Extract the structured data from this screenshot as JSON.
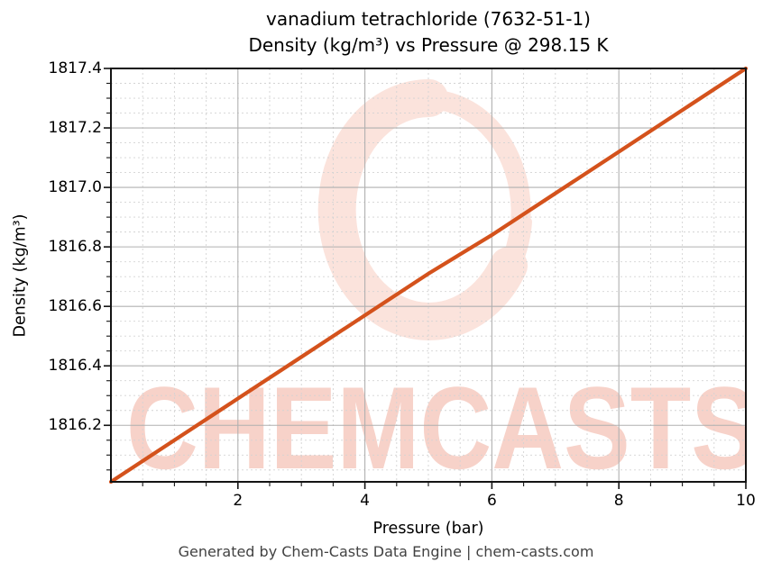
{
  "chart_data": {
    "type": "line",
    "title": "vanadium tetrachloride (7632-51-1)",
    "subtitle": "Density (kg/m³) vs Pressure @ 298.15 K",
    "xlabel": "Pressure (bar)",
    "ylabel": "Density (kg/m³)",
    "xlim": [
      0,
      10
    ],
    "ylim": [
      1816.01,
      1817.4
    ],
    "x_major_ticks": [
      2,
      4,
      6,
      8,
      10
    ],
    "x_minor_step": 0.5,
    "x_tick_decimals": 0,
    "y_major_ticks": [
      1816.2,
      1816.4,
      1816.6,
      1816.8,
      1817.0,
      1817.2,
      1817.4
    ],
    "y_minor_step": 0.05,
    "y_tick_decimals": 1,
    "grid": {
      "major_color": "#b0b0b0",
      "minor_color": "#d3d3d3",
      "minor_dash": "2 3"
    },
    "axis_color": "#141414",
    "legend_position": "none",
    "series": [
      {
        "name": "density",
        "color": "#d4521c",
        "points": [
          [
            0,
            1816.01
          ],
          [
            1,
            1816.15
          ],
          [
            2,
            1816.29
          ],
          [
            3,
            1816.43
          ],
          [
            4,
            1816.57
          ],
          [
            5,
            1816.71
          ],
          [
            6,
            1816.84
          ],
          [
            7,
            1816.98
          ],
          [
            8,
            1817.12
          ],
          [
            9,
            1817.26
          ],
          [
            10,
            1817.4
          ]
        ]
      }
    ]
  },
  "watermark": {
    "text": "CHEMCASTS",
    "text_color": "#f7d2c9",
    "ring_color": "#fbe3dc"
  },
  "footer": {
    "text": "Generated by Chem-Casts Data Engine | chem-casts.com"
  }
}
